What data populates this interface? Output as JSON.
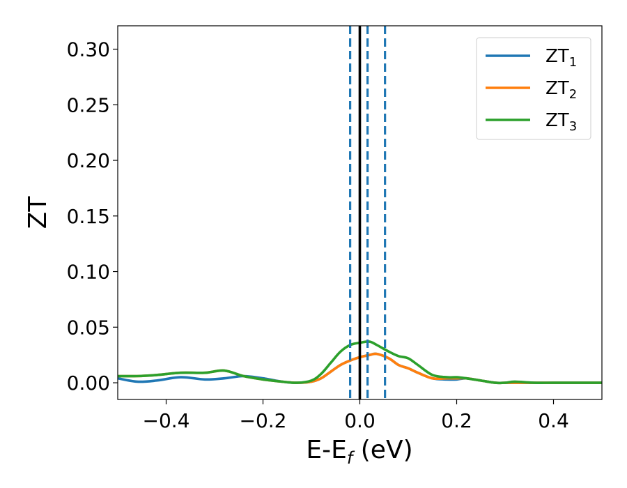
{
  "chart_data": {
    "type": "line",
    "xlabel": "E-E",
    "xlabel_sub": "f",
    "xlabel_unit": " (eV)",
    "ylabel": "ZT",
    "xlim": [
      -0.5,
      0.5
    ],
    "ylim": [
      -0.015,
      0.321
    ],
    "xticks": [
      -0.4,
      -0.2,
      0.0,
      0.2,
      0.4
    ],
    "xtick_labels": [
      "−0.4",
      "−0.2",
      "0.0",
      "0.2",
      "0.4"
    ],
    "yticks": [
      0.0,
      0.05,
      0.1,
      0.15,
      0.2,
      0.25,
      0.3
    ],
    "ytick_labels": [
      "0.00",
      "0.05",
      "0.10",
      "0.15",
      "0.20",
      "0.25",
      "0.30"
    ],
    "grid": false,
    "legend_position": "top-right",
    "series": [
      {
        "name": "ZT",
        "name_sub": "1",
        "color": "#1f77b4",
        "x": [
          -0.5,
          -0.46,
          -0.42,
          -0.37,
          -0.32,
          -0.28,
          -0.24,
          -0.2,
          -0.16,
          -0.13,
          -0.1,
          -0.08,
          -0.06,
          -0.04,
          -0.02,
          0.0,
          0.02,
          0.035,
          0.06,
          0.08,
          0.1,
          0.12,
          0.15,
          0.18,
          0.2,
          0.22,
          0.25,
          0.28,
          0.3,
          0.32,
          0.36,
          0.4,
          0.45,
          0.5
        ],
        "values": [
          0.004,
          0.001,
          0.002,
          0.005,
          0.003,
          0.004,
          0.006,
          0.004,
          0.001,
          0.0,
          0.001,
          0.004,
          0.01,
          0.016,
          0.02,
          0.023,
          0.025,
          0.026,
          0.022,
          0.016,
          0.013,
          0.009,
          0.004,
          0.003,
          0.003,
          0.004,
          0.002,
          0.0,
          0.0,
          0.0,
          0.0,
          0.0,
          0.0,
          0.0
        ]
      },
      {
        "name": "ZT",
        "name_sub": "2",
        "color": "#ff7f0e",
        "x": [
          -0.5,
          -0.46,
          -0.42,
          -0.37,
          -0.32,
          -0.28,
          -0.24,
          -0.2,
          -0.16,
          -0.13,
          -0.1,
          -0.08,
          -0.06,
          -0.04,
          -0.02,
          0.0,
          0.02,
          0.035,
          0.06,
          0.08,
          0.1,
          0.12,
          0.15,
          0.18,
          0.2,
          0.22,
          0.25,
          0.28,
          0.3,
          0.32,
          0.36,
          0.4,
          0.45,
          0.5
        ],
        "values": [
          0.006,
          0.006,
          0.007,
          0.009,
          0.009,
          0.011,
          0.006,
          0.003,
          0.001,
          0.0,
          0.001,
          0.004,
          0.01,
          0.016,
          0.02,
          0.023,
          0.025,
          0.026,
          0.022,
          0.016,
          0.013,
          0.009,
          0.004,
          0.004,
          0.004,
          0.004,
          0.002,
          0.0,
          0.0,
          0.0,
          0.0,
          0.0,
          0.0,
          0.0
        ]
      },
      {
        "name": "ZT",
        "name_sub": "3",
        "color": "#2ca02c",
        "x": [
          -0.5,
          -0.46,
          -0.42,
          -0.37,
          -0.32,
          -0.28,
          -0.24,
          -0.2,
          -0.16,
          -0.13,
          -0.1,
          -0.08,
          -0.06,
          -0.04,
          -0.02,
          0.0,
          0.02,
          0.035,
          0.06,
          0.08,
          0.1,
          0.12,
          0.15,
          0.18,
          0.2,
          0.22,
          0.25,
          0.28,
          0.3,
          0.32,
          0.36,
          0.4,
          0.45,
          0.5
        ],
        "values": [
          0.006,
          0.006,
          0.007,
          0.009,
          0.009,
          0.011,
          0.006,
          0.003,
          0.001,
          0.0,
          0.002,
          0.008,
          0.018,
          0.028,
          0.034,
          0.036,
          0.037,
          0.034,
          0.028,
          0.024,
          0.022,
          0.016,
          0.007,
          0.005,
          0.005,
          0.004,
          0.002,
          0.0,
          0.0,
          0.001,
          0.0,
          0.0,
          0.0,
          0.0
        ]
      }
    ],
    "vlines": [
      {
        "x": 0.0,
        "style": "solid",
        "color": "#000000"
      },
      {
        "x": -0.02,
        "style": "dashed",
        "color": "#1f77b4"
      },
      {
        "x": 0.016,
        "style": "dashed",
        "color": "#1f77b4"
      },
      {
        "x": 0.052,
        "style": "dashed",
        "color": "#1f77b4"
      }
    ]
  }
}
